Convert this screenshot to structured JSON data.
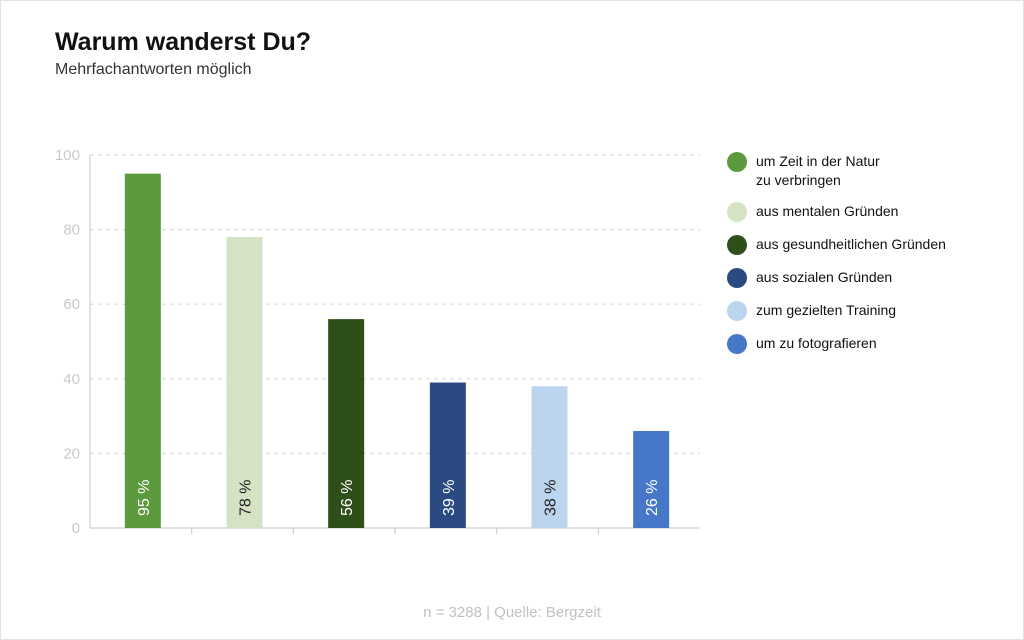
{
  "header": {
    "title": "Warum wanderst Du?",
    "subtitle": "Mehrfachantworten möglich"
  },
  "footer": {
    "source": "n = 3288 | Quelle: Bergzeit"
  },
  "colors": {
    "natur": "#5d9a3e",
    "mental": "#d5e2c3",
    "gesund": "#2f4f1a",
    "sozial": "#2b4a82",
    "training": "#bcd5ef",
    "foto": "#4677c9",
    "grid": "#dcdcdc",
    "tick_text": "#c9c9c9",
    "axis": "#cfcfcf"
  },
  "chart_data": {
    "type": "bar",
    "title": "Warum wanderst Du?",
    "subtitle": "Mehrfachantworten möglich",
    "categories": [
      "um Zeit in der Natur zu verbringen",
      "aus mentalen Gründen",
      "aus gesundheitlichen Gründen",
      "aus sozialen Gründen",
      "zum gezielten Training",
      "um zu fotografieren"
    ],
    "values": [
      95,
      78,
      56,
      39,
      38,
      26
    ],
    "data_labels": [
      "95 %",
      "78 %",
      "56 %",
      "39 %",
      "38 %",
      "26 %"
    ],
    "bar_colors": [
      "#5d9a3e",
      "#d5e2c3",
      "#2f4f1a",
      "#2b4a82",
      "#bcd5ef",
      "#4677c9"
    ],
    "label_colors": [
      "#ffffff",
      "#222222",
      "#ffffff",
      "#ffffff",
      "#222222",
      "#ffffff"
    ],
    "ylim": [
      0,
      100
    ],
    "yticks": [
      0,
      20,
      40,
      60,
      80,
      100
    ],
    "ytick_labels": [
      "0",
      "20",
      "40",
      "60",
      "80",
      "100"
    ],
    "xlabel": "",
    "ylabel": "",
    "grid": true,
    "legend": "right",
    "legend_entries": [
      "um Zeit in der Natur\nzu verbringen",
      "aus mentalen Gründen",
      "aus gesundheitlichen Gründen",
      "aus sozialen Gründen",
      "zum gezielten Training",
      "um zu fotografieren"
    ]
  }
}
